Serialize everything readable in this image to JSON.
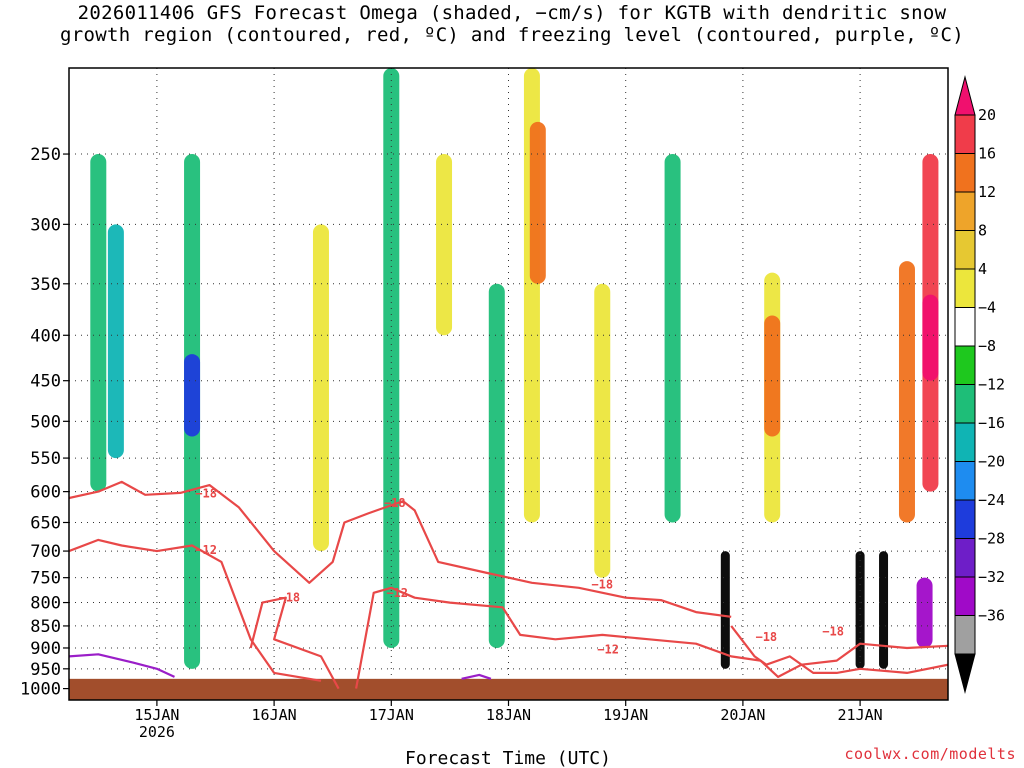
{
  "title": {
    "line1": "2026011406 GFS Forecast Omega (shaded, −cm/s) for KGTB with dendritic snow",
    "line2": "growth region (contoured, red, ºC) and freezing level (contoured, purple, ºC)"
  },
  "credit": "coolwx.com/modelts",
  "chart_data": {
    "type": "heatmap",
    "xlabel": "Forecast Time (UTC)",
    "ylabel": "",
    "x_range_days": [
      14.25,
      21.75
    ],
    "x_ticks": [
      {
        "day": 15,
        "label": "15JAN",
        "sub": "2026"
      },
      {
        "day": 16,
        "label": "16JAN"
      },
      {
        "day": 17,
        "label": "17JAN"
      },
      {
        "day": 18,
        "label": "18JAN"
      },
      {
        "day": 19,
        "label": "19JAN"
      },
      {
        "day": 20,
        "label": "20JAN"
      },
      {
        "day": 21,
        "label": "21JAN"
      }
    ],
    "y_axis": {
      "unit": "hPa",
      "top": 200,
      "bottom": 1030,
      "ticks": [
        250,
        300,
        350,
        400,
        450,
        500,
        550,
        600,
        650,
        700,
        750,
        800,
        850,
        900,
        950,
        1000
      ]
    },
    "ground_level_hpa": 975,
    "ground_color": "#a24e2c",
    "colorbar": {
      "labels": [
        "20",
        "16",
        "12",
        "8",
        "4",
        "−4",
        "−8",
        "−12",
        "−16",
        "−20",
        "−24",
        "−28",
        "−32",
        "−36"
      ],
      "colors": [
        "#f0106e",
        "#f03c4a",
        "#f0721e",
        "#eea42a",
        "#e6c832",
        "#ece63c",
        "#ffffff",
        "#1ec81e",
        "#1ebe78",
        "#10b4b4",
        "#1e8cf0",
        "#1e3cdc",
        "#6e1ec8",
        "#a00ac8",
        "#a0a0a0",
        "#000000"
      ]
    },
    "shaded_regions": [
      {
        "day": 14.5,
        "p_top": 250,
        "p_bot": 600,
        "value": -8
      },
      {
        "day": 14.65,
        "p_top": 300,
        "p_bot": 550,
        "value": -12
      },
      {
        "day": 15.3,
        "p_top": 250,
        "p_bot": 950,
        "value": -8
      },
      {
        "day": 15.3,
        "p_top": 420,
        "p_bot": 520,
        "value": -20
      },
      {
        "day": 16.4,
        "p_top": 300,
        "p_bot": 700,
        "value": 6
      },
      {
        "day": 17.0,
        "p_top": 200,
        "p_bot": 900,
        "value": -8
      },
      {
        "day": 17.45,
        "p_top": 250,
        "p_bot": 400,
        "value": 6
      },
      {
        "day": 17.9,
        "p_top": 350,
        "p_bot": 900,
        "value": -8
      },
      {
        "day": 18.2,
        "p_top": 200,
        "p_bot": 650,
        "value": 6
      },
      {
        "day": 18.25,
        "p_top": 230,
        "p_bot": 350,
        "value": 12
      },
      {
        "day": 18.8,
        "p_top": 350,
        "p_bot": 750,
        "value": 6
      },
      {
        "day": 19.4,
        "p_top": 250,
        "p_bot": 650,
        "value": -8
      },
      {
        "day": 19.85,
        "p_top": 700,
        "p_bot": 950,
        "value": -36
      },
      {
        "day": 20.25,
        "p_top": 340,
        "p_bot": 650,
        "value": 6
      },
      {
        "day": 20.25,
        "p_top": 380,
        "p_bot": 520,
        "value": 12
      },
      {
        "day": 21.4,
        "p_top": 330,
        "p_bot": 650,
        "value": 14
      },
      {
        "day": 21.6,
        "p_top": 250,
        "p_bot": 600,
        "value": 16
      },
      {
        "day": 21.6,
        "p_top": 360,
        "p_bot": 450,
        "value": 20
      },
      {
        "day": 21.0,
        "p_top": 700,
        "p_bot": 950,
        "value": -36
      },
      {
        "day": 21.2,
        "p_top": 700,
        "p_bot": 950,
        "value": -36
      },
      {
        "day": 21.55,
        "p_top": 750,
        "p_bot": 900,
        "value": -28
      }
    ],
    "contours": [
      {
        "name": "dgz-minus-18",
        "label": "−18",
        "color": "#e84848",
        "points": [
          [
            14.25,
            610
          ],
          [
            14.5,
            600
          ],
          [
            14.7,
            585
          ],
          [
            14.9,
            605
          ],
          [
            15.2,
            602
          ],
          [
            15.45,
            590
          ],
          [
            15.7,
            625
          ],
          [
            16.0,
            700
          ],
          [
            16.3,
            760
          ],
          [
            16.5,
            720
          ],
          [
            16.6,
            650
          ],
          [
            16.8,
            635
          ],
          [
            17.1,
            615
          ],
          [
            17.2,
            630
          ],
          [
            17.4,
            720
          ],
          [
            17.8,
            740
          ],
          [
            18.2,
            760
          ],
          [
            18.6,
            770
          ],
          [
            19.0,
            790
          ],
          [
            19.3,
            795
          ],
          [
            19.6,
            820
          ],
          [
            19.9,
            830
          ]
        ]
      },
      {
        "name": "dgz-minus-12",
        "label": "−12",
        "color": "#e84848",
        "points": [
          [
            14.25,
            700
          ],
          [
            14.5,
            680
          ],
          [
            14.7,
            690
          ],
          [
            15.0,
            700
          ],
          [
            15.3,
            690
          ],
          [
            15.55,
            720
          ],
          [
            15.8,
            880
          ],
          [
            16.0,
            960
          ],
          [
            16.4,
            980
          ]
        ]
      },
      {
        "name": "dgz-minus-18-low",
        "label": "−18",
        "color": "#e84848",
        "points": [
          [
            15.8,
            900
          ],
          [
            15.9,
            800
          ],
          [
            16.1,
            790
          ],
          [
            16.0,
            880
          ],
          [
            16.4,
            920
          ],
          [
            16.55,
            1000
          ]
        ]
      },
      {
        "name": "dgz-minus-12-mid",
        "label": "−12",
        "color": "#e84848",
        "points": [
          [
            16.7,
            1000
          ],
          [
            16.85,
            780
          ],
          [
            17.0,
            770
          ],
          [
            17.2,
            790
          ],
          [
            17.5,
            800
          ],
          [
            17.95,
            810
          ],
          [
            18.1,
            870
          ],
          [
            18.4,
            880
          ],
          [
            18.8,
            870
          ],
          [
            19.2,
            880
          ],
          [
            19.6,
            890
          ],
          [
            19.9,
            920
          ],
          [
            20.15,
            930
          ],
          [
            20.3,
            970
          ],
          [
            20.5,
            940
          ],
          [
            20.8,
            930
          ],
          [
            21.0,
            890
          ],
          [
            21.4,
            900
          ],
          [
            21.75,
            895
          ]
        ]
      },
      {
        "name": "dgz-minus-18-east",
        "label": "−18",
        "color": "#e84848",
        "points": [
          [
            19.9,
            850
          ],
          [
            20.1,
            920
          ],
          [
            20.2,
            940
          ],
          [
            20.4,
            920
          ],
          [
            20.6,
            960
          ],
          [
            20.8,
            960
          ],
          [
            21.0,
            950
          ],
          [
            21.4,
            960
          ],
          [
            21.75,
            940
          ]
        ]
      },
      {
        "name": "freezing-level-west",
        "label": "",
        "color": "#9a1ec8",
        "points": [
          [
            14.25,
            920
          ],
          [
            14.5,
            915
          ],
          [
            14.8,
            935
          ],
          [
            15.0,
            950
          ],
          [
            15.15,
            970
          ]
        ]
      },
      {
        "name": "freezing-level-18jan",
        "label": "",
        "color": "#9a1ec8",
        "points": [
          [
            17.6,
            975
          ],
          [
            17.75,
            965
          ],
          [
            17.85,
            975
          ]
        ]
      }
    ],
    "contour_labels": [
      {
        "text": "−18",
        "day": 15.42,
        "p": 603
      },
      {
        "text": "−12",
        "day": 15.42,
        "p": 698
      },
      {
        "text": "−18",
        "day": 16.13,
        "p": 790
      },
      {
        "text": "−18",
        "day": 17.03,
        "p": 618
      },
      {
        "text": "−12",
        "day": 17.05,
        "p": 780
      },
      {
        "text": "−18",
        "day": 18.8,
        "p": 763
      },
      {
        "text": "−12",
        "day": 18.85,
        "p": 903
      },
      {
        "text": "−18",
        "day": 20.2,
        "p": 875
      },
      {
        "text": "−18",
        "day": 20.77,
        "p": 862
      }
    ]
  }
}
